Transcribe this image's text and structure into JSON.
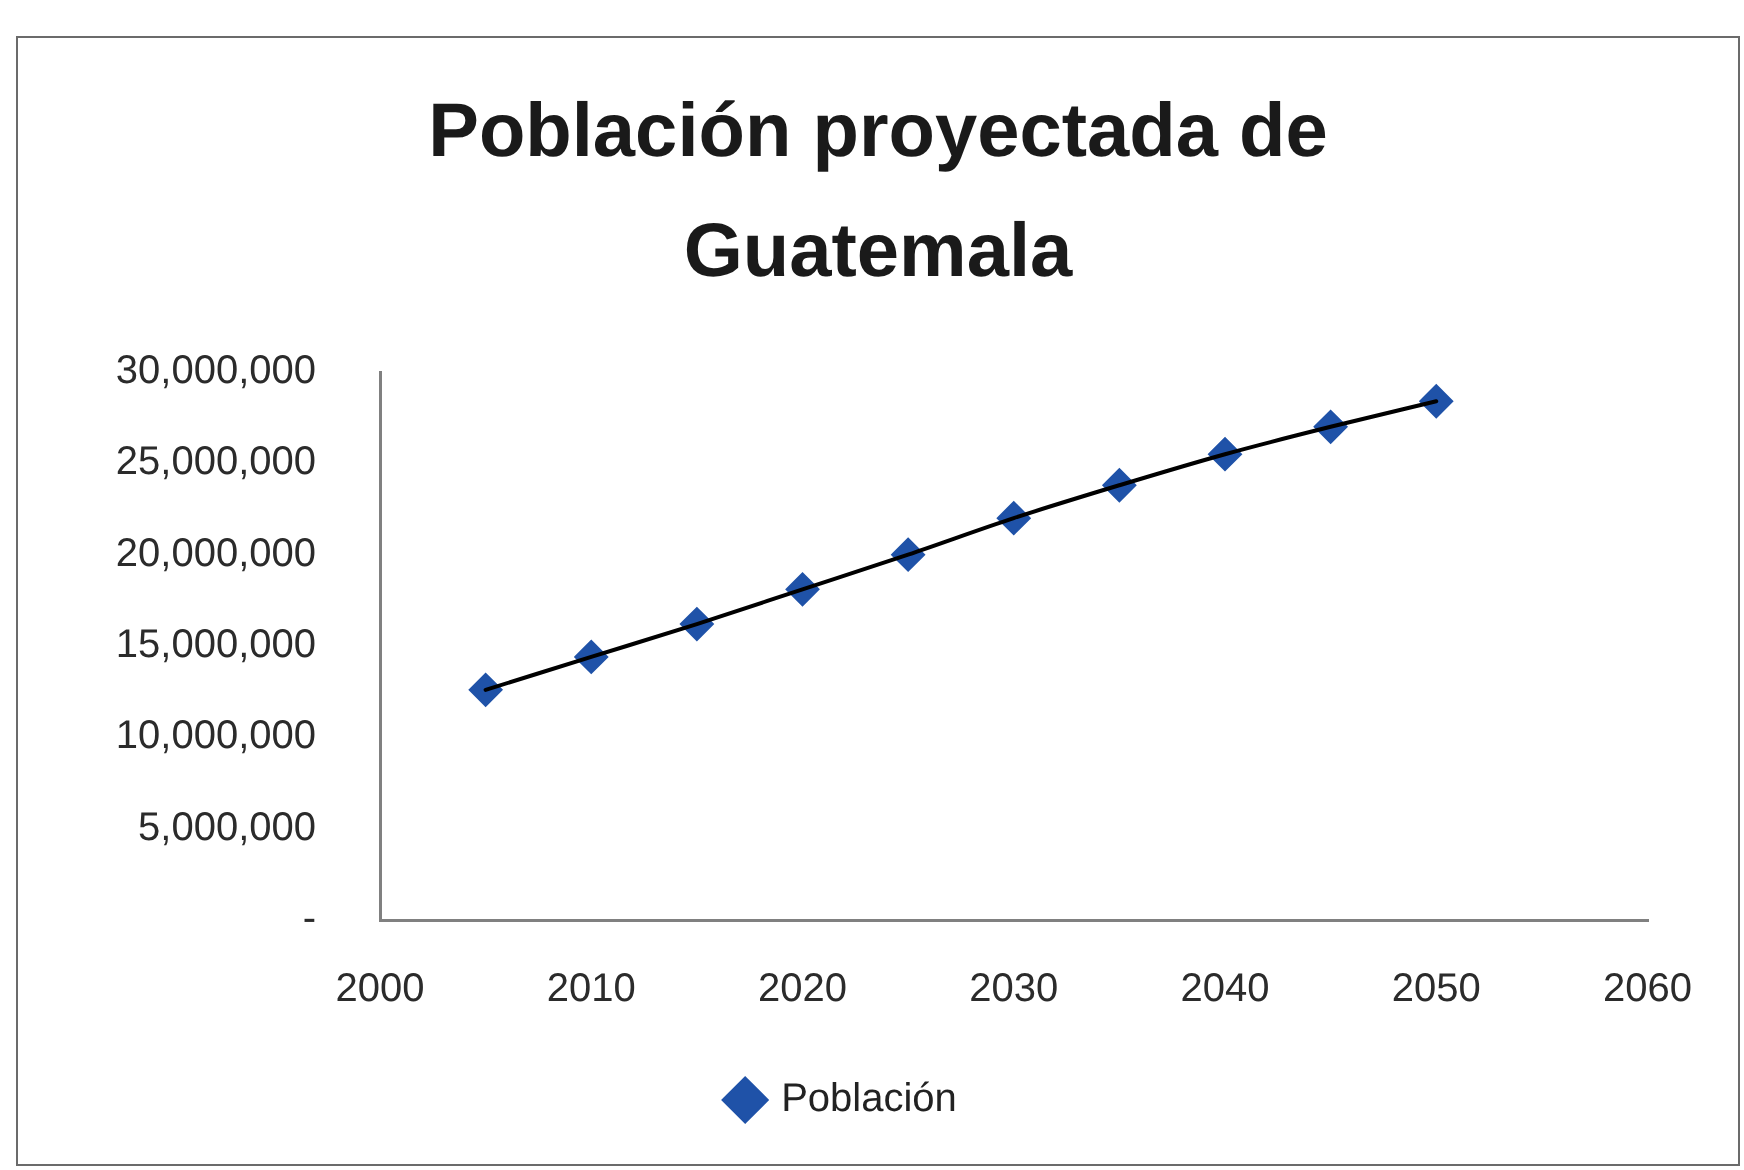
{
  "chart_data": {
    "type": "scatter",
    "title": "Población proyectada de Guatemala",
    "x": [
      2005,
      2010,
      2015,
      2020,
      2025,
      2030,
      2035,
      2040,
      2045,
      2050
    ],
    "series": [
      {
        "name": "Población",
        "color": "#1f52a8",
        "values": [
          12600000,
          14400000,
          16200000,
          18100000,
          20000000,
          22000000,
          23800000,
          25500000,
          27000000,
          28400000
        ]
      },
      {
        "type": "line",
        "color": "#000000",
        "marker": "none",
        "x": [
          2005,
          2010,
          2015,
          2020,
          2025,
          2030,
          2035,
          2040,
          2045,
          2050
        ],
        "values": [
          12600000,
          14400000,
          16200000,
          18100000,
          20000000,
          22000000,
          23800000,
          25500000,
          27000000,
          28400000
        ]
      }
    ],
    "xlim": [
      2000,
      2060
    ],
    "xticks": [
      2000,
      2010,
      2020,
      2030,
      2040,
      2050,
      2060
    ],
    "ylim": [
      0,
      30000000
    ],
    "yticks": [
      {
        "value": 0,
        "label": "-"
      },
      {
        "value": 5000000,
        "label": "5,000,000"
      },
      {
        "value": 10000000,
        "label": "10,000,000"
      },
      {
        "value": 15000000,
        "label": "15,000,000"
      },
      {
        "value": 20000000,
        "label": "20,000,000"
      },
      {
        "value": 25000000,
        "label": "25,000,000"
      },
      {
        "value": 30000000,
        "label": "30,000,000"
      }
    ],
    "grid": false,
    "legend": "bottom",
    "marker": "diamond"
  }
}
